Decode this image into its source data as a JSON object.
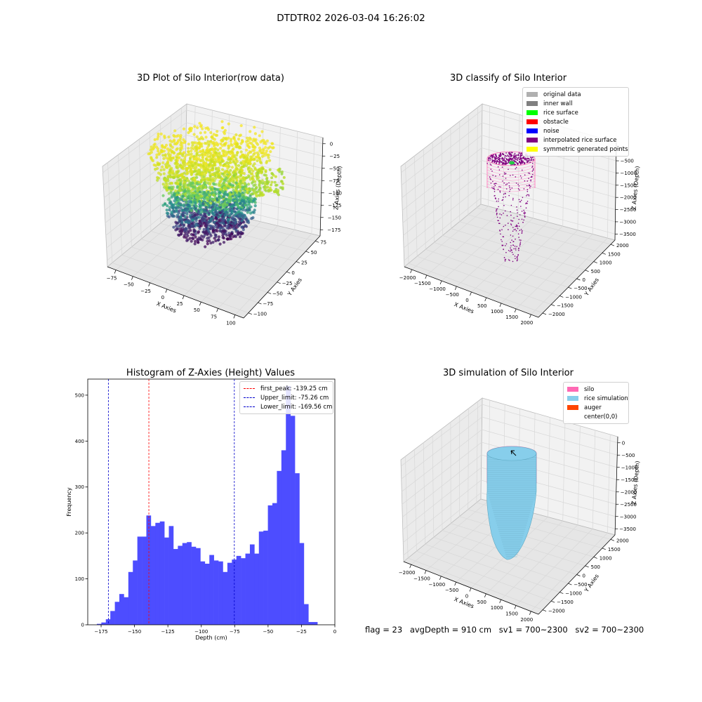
{
  "figure_title": "DTDTR02 2026-03-04 16:26:02",
  "footer": {
    "flag": "flag = 23",
    "avg_depth": "avgDepth = 910 cm",
    "sv1": "sv1 = 700~2300",
    "sv2": "sv2 = 700~2300"
  },
  "colors": {
    "histogram_bar": "#4d4dff",
    "first_peak_line": "#ff0000",
    "limit_lines": "#0000cc",
    "silo": "#ff69b4",
    "rice_simulation": "#87ceeb",
    "auger": "#ff4500",
    "viridis": [
      "#440154",
      "#3b528b",
      "#21918c",
      "#5ec962",
      "#c8e020",
      "#fde725"
    ]
  },
  "chart_data": [
    {
      "type": "scatter",
      "projection": "3d",
      "title": "3D Plot of Silo Interior(row data)",
      "xlabel": "X Axies",
      "ylabel": "Y Axies",
      "zlabel": "Z Axies (Depth)",
      "xticks": [
        "−75",
        "−50",
        "−25",
        "0",
        "25",
        "50",
        "75",
        "100"
      ],
      "yticks": [
        "−100",
        "−75",
        "−50",
        "−25",
        "0",
        "25",
        "50",
        "75"
      ],
      "zticks": [
        "0",
        "−25",
        "−50",
        "−75",
        "−100",
        "−125",
        "−150",
        "−175"
      ],
      "xlim": [
        -85,
        100
      ],
      "ylim": [
        -100,
        85
      ],
      "zlim": [
        -185,
        0
      ],
      "colormap": "viridis",
      "grid": true
    },
    {
      "type": "scatter",
      "projection": "3d",
      "title": "3D classify of Silo Interior",
      "xlabel": "X Axies",
      "ylabel": "Y Axies",
      "zlabel": "Z Axies (Depth)",
      "xticks": [
        "−2000",
        "−1500",
        "−1000",
        "−500",
        "0",
        "500",
        "1000",
        "1500",
        "2000"
      ],
      "yticks": [
        "−2000",
        "−1500",
        "−1000",
        "−500",
        "0",
        "500",
        "1000",
        "1500",
        "2000"
      ],
      "zticks": [
        "0",
        "−500",
        "−1000",
        "−1500",
        "−2000",
        "−2500",
        "−3000",
        "−3500"
      ],
      "legend_position": "top-right",
      "legend": [
        {
          "label": "original data",
          "color": "#b0b0b0"
        },
        {
          "label": "inner wall",
          "color": "#808080"
        },
        {
          "label": "rice surface",
          "color": "#00ff00"
        },
        {
          "label": "obstacle",
          "color": "#ff0000"
        },
        {
          "label": "noise",
          "color": "#0000ff"
        },
        {
          "label": "interpolated rice surface",
          "color": "#800080"
        },
        {
          "label": "symmetric generated points",
          "color": "#ffff00"
        }
      ],
      "grid": true
    },
    {
      "type": "bar",
      "title": "Histogram of Z-Axies (Height) Values",
      "xlabel": "Depth (cm)",
      "ylabel": "Frequency",
      "xlim": [
        -185,
        0
      ],
      "ylim": [
        0,
        535
      ],
      "xticks": [
        -175,
        -150,
        -125,
        -100,
        -75,
        -50,
        -25,
        0
      ],
      "xtick_labels": [
        "−175",
        "−150",
        "−125",
        "−100",
        "−75",
        "−50",
        "−25",
        "0"
      ],
      "yticks": [
        0,
        100,
        200,
        300,
        400,
        500
      ],
      "yticks_labels": [
        "0",
        "100",
        "200",
        "300",
        "400",
        "500"
      ],
      "bin_start": -178.2,
      "bin_width": 3.37,
      "values": [
        2,
        5,
        12,
        30,
        50,
        67,
        60,
        115,
        140,
        192,
        192,
        238,
        215,
        222,
        225,
        190,
        215,
        165,
        172,
        178,
        180,
        170,
        167,
        138,
        133,
        152,
        140,
        138,
        115,
        135,
        142,
        150,
        145,
        155,
        175,
        155,
        203,
        205,
        260,
        265,
        335,
        380,
        520,
        455,
        330,
        178,
        45,
        6,
        6
      ],
      "vlines": [
        {
          "x": -139.25,
          "label": "first_peak: -139.25 cm",
          "color": "#ff0000"
        },
        {
          "x": -75.26,
          "label": "Upper_limit: -75.26 cm",
          "color": "#0000cc"
        },
        {
          "x": -169.56,
          "label": "Lower_limit: -169.56 cm",
          "color": "#0000cc"
        }
      ],
      "legend_position": "top-right"
    },
    {
      "type": "area",
      "projection": "3d",
      "title": "3D simulation of Silo Interior",
      "xlabel": "X Axies",
      "ylabel": "Y Axies",
      "zlabel": "Z Axies (Depth)",
      "xticks": [
        "−2000",
        "−1500",
        "−1000",
        "−500",
        "0",
        "500",
        "1000",
        "1500",
        "2000"
      ],
      "yticks": [
        "−2000",
        "−1500",
        "−1000",
        "−500",
        "0",
        "500",
        "1000",
        "1500",
        "2000"
      ],
      "zticks": [
        "0",
        "−500",
        "−1000",
        "−1500",
        "−2000",
        "−2500",
        "−3000",
        "−3500"
      ],
      "legend_position": "top-right",
      "legend": [
        {
          "label": "silo",
          "color": "#ff69b4"
        },
        {
          "label": "rice simulation",
          "color": "#87ceeb"
        },
        {
          "label": "auger",
          "color": "#ff4500"
        },
        {
          "label": "center(0,0)",
          "color": ""
        }
      ],
      "grid": true
    }
  ]
}
